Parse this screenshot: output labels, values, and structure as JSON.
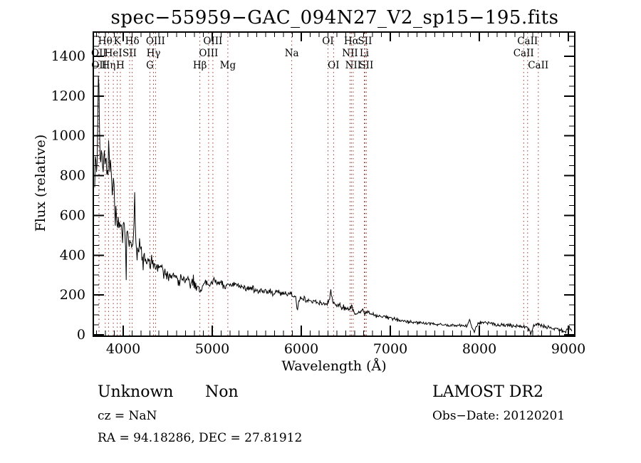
{
  "title": "spec−55959−GAC_094N27_V2_sp15−195.fits",
  "footer": {
    "class_label": "Unknown",
    "subclass_label": "Non",
    "cz": "cz = NaN",
    "coords": "RA =  94.18286, DEC =  27.81912",
    "survey": "LAMOST DR2",
    "obs_date": "Obs−Date: 20120201"
  },
  "chart_data": {
    "type": "line",
    "title": "spec−55959−GAC_094N27_V2_sp15−195.fits",
    "xlabel": "Wavelength (Å)",
    "ylabel": "Flux (relative)",
    "xlim": [
      3664,
      9072
    ],
    "ylim": [
      0,
      1400
    ],
    "x_ticks": [
      4000,
      5000,
      6000,
      7000,
      8000,
      9000
    ],
    "y_ticks": [
      0,
      200,
      400,
      600,
      800,
      1000,
      1200,
      1400
    ],
    "x_minor_step": 100,
    "y_minor_step": 50,
    "grid": false,
    "line_color": "#000000",
    "marker_line_color": "#9c3931",
    "spectral_lines": [
      {
        "label": "Hθ",
        "wavelength": 3798,
        "row": 1
      },
      {
        "label": "K",
        "wavelength": 3933,
        "row": 1
      },
      {
        "label": "Hδ",
        "wavelength": 4101,
        "row": 1
      },
      {
        "label": "OIII",
        "wavelength": 4363,
        "row": 1
      },
      {
        "label": "OIII",
        "wavelength": 5007,
        "row": 1
      },
      {
        "label": "OI",
        "wavelength": 6300,
        "row": 1
      },
      {
        "label": "Hα",
        "wavelength": 6563,
        "row": 1
      },
      {
        "label": "SII",
        "wavelength": 6716,
        "row": 1
      },
      {
        "label": "CaII",
        "wavelength": 8542,
        "row": 1
      },
      {
        "label": "OII",
        "wavelength": 3727,
        "row": 2
      },
      {
        "label": "HeI",
        "wavelength": 3889,
        "row": 2
      },
      {
        "label": "SII",
        "wavelength": 4072,
        "row": 2
      },
      {
        "label": "Hγ",
        "wavelength": 4340,
        "row": 2
      },
      {
        "label": "OIII",
        "wavelength": 4959,
        "row": 2
      },
      {
        "label": "Na",
        "wavelength": 5893,
        "row": 2
      },
      {
        "label": "NII",
        "wavelength": 6548,
        "row": 2
      },
      {
        "label": "Li",
        "wavelength": 6708,
        "row": 2
      },
      {
        "label": "CaII",
        "wavelength": 8498,
        "row": 2
      },
      {
        "label": "OII",
        "wavelength": 3729,
        "row": 3
      },
      {
        "label": "Hη",
        "wavelength": 3835,
        "row": 3
      },
      {
        "label": "H",
        "wavelength": 3968,
        "row": 3
      },
      {
        "label": "G",
        "wavelength": 4300,
        "row": 3
      },
      {
        "label": "Hβ",
        "wavelength": 4861,
        "row": 3
      },
      {
        "label": "Mg",
        "wavelength": 5175,
        "row": 3
      },
      {
        "label": "OI",
        "wavelength": 6363,
        "row": 3
      },
      {
        "label": "NII",
        "wavelength": 6583,
        "row": 3
      },
      {
        "label": "SII",
        "wavelength": 6731,
        "row": 3
      },
      {
        "label": "CaII",
        "wavelength": 8662,
        "row": 3
      }
    ],
    "continuum_points": [
      [
        3680,
        760
      ],
      [
        3695,
        900
      ],
      [
        3705,
        800
      ],
      [
        3715,
        1050
      ],
      [
        3724,
        1430
      ],
      [
        3730,
        1120
      ],
      [
        3738,
        950
      ],
      [
        3748,
        870
      ],
      [
        3760,
        960
      ],
      [
        3772,
        830
      ],
      [
        3785,
        920
      ],
      [
        3800,
        800
      ],
      [
        3815,
        860
      ],
      [
        3828,
        780
      ],
      [
        3838,
        960
      ],
      [
        3848,
        790
      ],
      [
        3862,
        840
      ],
      [
        3875,
        720
      ],
      [
        3890,
        780
      ],
      [
        3905,
        660
      ],
      [
        3920,
        620
      ],
      [
        3933,
        545
      ],
      [
        3945,
        635
      ],
      [
        3958,
        545
      ],
      [
        3968,
        470
      ],
      [
        3978,
        560
      ],
      [
        3990,
        390
      ],
      [
        4000,
        610
      ],
      [
        4012,
        540
      ],
      [
        4025,
        480
      ],
      [
        4032,
        215
      ],
      [
        4040,
        500
      ],
      [
        4055,
        515
      ],
      [
        4070,
        460
      ],
      [
        4085,
        470
      ],
      [
        4101,
        425
      ],
      [
        4115,
        465
      ],
      [
        4128,
        700
      ],
      [
        4140,
        470
      ],
      [
        4160,
        450
      ],
      [
        4185,
        430
      ],
      [
        4210,
        415
      ],
      [
        4240,
        390
      ],
      [
        4270,
        370
      ],
      [
        4300,
        350
      ],
      [
        4325,
        355
      ],
      [
        4340,
        330
      ],
      [
        4360,
        345
      ],
      [
        4390,
        340
      ],
      [
        4420,
        325
      ],
      [
        4450,
        310
      ],
      [
        4480,
        305
      ],
      [
        4510,
        300
      ],
      [
        4540,
        288
      ],
      [
        4570,
        292
      ],
      [
        4600,
        288
      ],
      [
        4630,
        275
      ],
      [
        4660,
        280
      ],
      [
        4690,
        278
      ],
      [
        4720,
        268
      ],
      [
        4750,
        262
      ],
      [
        4780,
        258
      ],
      [
        4810,
        252
      ],
      [
        4840,
        235
      ],
      [
        4861,
        195
      ],
      [
        4880,
        240
      ],
      [
        4900,
        250
      ],
      [
        4930,
        252
      ],
      [
        4960,
        257
      ],
      [
        5000,
        262
      ],
      [
        5040,
        266
      ],
      [
        5080,
        262
      ],
      [
        5120,
        258
      ],
      [
        5160,
        248
      ],
      [
        5200,
        252
      ],
      [
        5240,
        256
      ],
      [
        5280,
        250
      ],
      [
        5320,
        244
      ],
      [
        5360,
        236
      ],
      [
        5400,
        230
      ],
      [
        5440,
        234
      ],
      [
        5480,
        226
      ],
      [
        5520,
        222
      ],
      [
        5560,
        226
      ],
      [
        5600,
        222
      ],
      [
        5640,
        216
      ],
      [
        5680,
        210
      ],
      [
        5720,
        214
      ],
      [
        5760,
        207
      ],
      [
        5800,
        203
      ],
      [
        5840,
        208
      ],
      [
        5880,
        198
      ],
      [
        5910,
        192
      ],
      [
        5940,
        185
      ],
      [
        5958,
        108
      ],
      [
        5975,
        178
      ],
      [
        6000,
        182
      ],
      [
        6040,
        176
      ],
      [
        6080,
        172
      ],
      [
        6120,
        168
      ],
      [
        6160,
        163
      ],
      [
        6200,
        158
      ],
      [
        6240,
        154
      ],
      [
        6280,
        158
      ],
      [
        6310,
        168
      ],
      [
        6330,
        232
      ],
      [
        6350,
        162
      ],
      [
        6380,
        152
      ],
      [
        6420,
        146
      ],
      [
        6460,
        140
      ],
      [
        6500,
        134
      ],
      [
        6540,
        130
      ],
      [
        6565,
        142
      ],
      [
        6590,
        120
      ],
      [
        6620,
        96
      ],
      [
        6650,
        112
      ],
      [
        6680,
        118
      ],
      [
        6710,
        114
      ],
      [
        6740,
        110
      ],
      [
        6780,
        106
      ],
      [
        6820,
        102
      ],
      [
        6860,
        97
      ],
      [
        6900,
        93
      ],
      [
        6950,
        88
      ],
      [
        7000,
        82
      ],
      [
        7060,
        76
      ],
      [
        7120,
        72
      ],
      [
        7180,
        68
      ],
      [
        7250,
        64
      ],
      [
        7320,
        61
      ],
      [
        7400,
        57
      ],
      [
        7480,
        54
      ],
      [
        7560,
        51
      ],
      [
        7640,
        49
      ],
      [
        7720,
        48
      ],
      [
        7800,
        46
      ],
      [
        7860,
        45
      ],
      [
        7890,
        78
      ],
      [
        7915,
        40
      ],
      [
        7945,
        12
      ],
      [
        7970,
        48
      ],
      [
        8000,
        56
      ],
      [
        8060,
        60
      ],
      [
        8120,
        58
      ],
      [
        8180,
        52
      ],
      [
        8250,
        50
      ],
      [
        8320,
        47
      ],
      [
        8400,
        45
      ],
      [
        8470,
        42
      ],
      [
        8530,
        38
      ],
      [
        8576,
        10
      ],
      [
        8610,
        42
      ],
      [
        8650,
        54
      ],
      [
        8690,
        46
      ],
      [
        8730,
        42
      ],
      [
        8770,
        38
      ],
      [
        8820,
        34
      ],
      [
        8870,
        28
      ],
      [
        8920,
        24
      ],
      [
        8955,
        15
      ],
      [
        8985,
        28
      ],
      [
        9010,
        36
      ],
      [
        9040,
        26
      ]
    ],
    "noise_profile": [
      [
        3680,
        110
      ],
      [
        3800,
        95
      ],
      [
        3900,
        75
      ],
      [
        4000,
        60
      ],
      [
        4100,
        52
      ],
      [
        4300,
        38
      ],
      [
        4600,
        28
      ],
      [
        4900,
        24
      ],
      [
        5200,
        20
      ],
      [
        5600,
        17
      ],
      [
        6000,
        16
      ],
      [
        6400,
        14
      ],
      [
        6800,
        12
      ],
      [
        7200,
        9
      ],
      [
        7600,
        8
      ],
      [
        8000,
        10
      ],
      [
        8400,
        9
      ],
      [
        8800,
        9
      ],
      [
        9040,
        8
      ]
    ]
  }
}
